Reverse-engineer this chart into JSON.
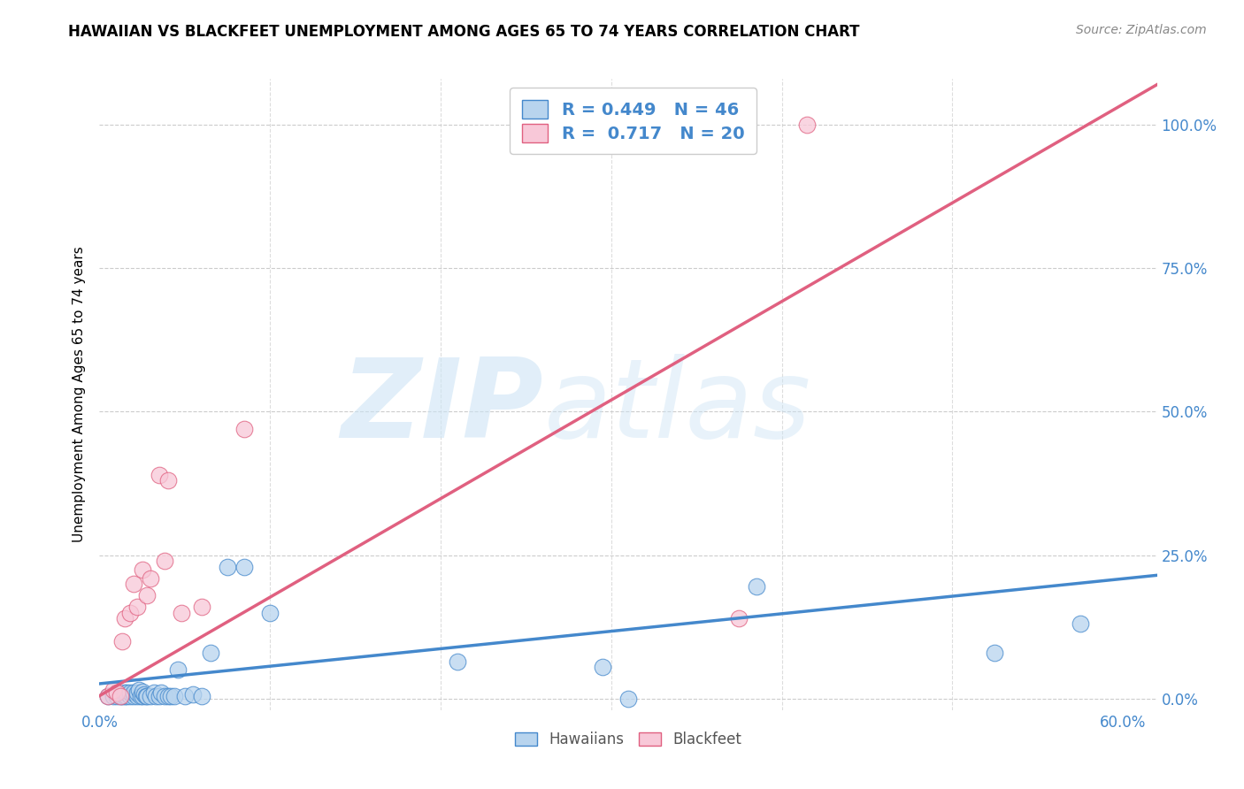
{
  "title": "HAWAIIAN VS BLACKFEET UNEMPLOYMENT AMONG AGES 65 TO 74 YEARS CORRELATION CHART",
  "source": "Source: ZipAtlas.com",
  "ylabel": "Unemployment Among Ages 65 to 74 years",
  "xlim": [
    0.0,
    0.62
  ],
  "ylim": [
    -0.02,
    1.08
  ],
  "ytick_vals": [
    0.0,
    0.25,
    0.5,
    0.75,
    1.0
  ],
  "xtick_vals": [
    0.0,
    0.6
  ],
  "R_hawaiian": 0.449,
  "N_hawaiian": 46,
  "R_blackfeet": 0.717,
  "N_blackfeet": 20,
  "hawaiian_color": "#b8d4ee",
  "blackfeet_color": "#f8c8d8",
  "hawaiian_line_color": "#4488cc",
  "blackfeet_line_color": "#e06080",
  "watermark_zip": "ZIP",
  "watermark_atlas": "atlas",
  "hawaiian_x": [
    0.005,
    0.008,
    0.01,
    0.01,
    0.012,
    0.013,
    0.015,
    0.015,
    0.016,
    0.016,
    0.018,
    0.018,
    0.02,
    0.02,
    0.022,
    0.022,
    0.023,
    0.024,
    0.025,
    0.025,
    0.026,
    0.027,
    0.028,
    0.03,
    0.032,
    0.033,
    0.035,
    0.036,
    0.038,
    0.04,
    0.042,
    0.044,
    0.046,
    0.05,
    0.055,
    0.06,
    0.065,
    0.075,
    0.085,
    0.1,
    0.21,
    0.295,
    0.31,
    0.385,
    0.525,
    0.575
  ],
  "hawaiian_y": [
    0.005,
    0.005,
    0.005,
    0.01,
    0.005,
    0.005,
    0.005,
    0.01,
    0.005,
    0.01,
    0.005,
    0.01,
    0.005,
    0.01,
    0.005,
    0.01,
    0.015,
    0.005,
    0.005,
    0.012,
    0.008,
    0.005,
    0.005,
    0.005,
    0.01,
    0.005,
    0.005,
    0.01,
    0.005,
    0.005,
    0.005,
    0.005,
    0.05,
    0.005,
    0.008,
    0.005,
    0.08,
    0.23,
    0.23,
    0.15,
    0.065,
    0.055,
    0.0,
    0.195,
    0.08,
    0.13
  ],
  "blackfeet_x": [
    0.005,
    0.008,
    0.01,
    0.012,
    0.013,
    0.015,
    0.018,
    0.02,
    0.022,
    0.025,
    0.028,
    0.03,
    0.035,
    0.038,
    0.04,
    0.048,
    0.06,
    0.085,
    0.375,
    0.415
  ],
  "blackfeet_y": [
    0.005,
    0.015,
    0.01,
    0.005,
    0.1,
    0.14,
    0.15,
    0.2,
    0.16,
    0.225,
    0.18,
    0.21,
    0.39,
    0.24,
    0.38,
    0.15,
    0.16,
    0.47,
    0.14,
    1.0
  ],
  "hawaiian_trend_x": [
    0.0,
    0.62
  ],
  "hawaiian_trend_y": [
    0.026,
    0.215
  ],
  "blackfeet_trend_x": [
    0.0,
    0.62
  ],
  "blackfeet_trend_y": [
    0.005,
    1.07
  ]
}
